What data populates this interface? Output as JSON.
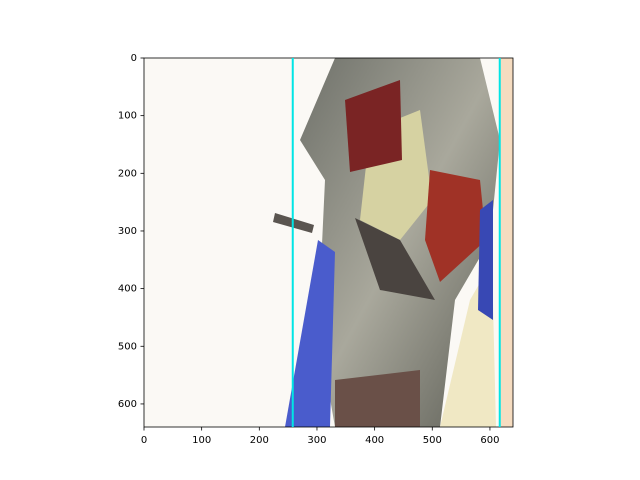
{
  "chart_data": {
    "type": "image",
    "xlim": [
      0,
      640
    ],
    "ylim": [
      640,
      0
    ],
    "xticks": [
      0,
      100,
      200,
      300,
      400,
      500,
      600
    ],
    "yticks": [
      0,
      100,
      200,
      300,
      400,
      500,
      600
    ],
    "vlines": {
      "color": "#00e5e5",
      "x": [
        258,
        617
      ]
    }
  }
}
